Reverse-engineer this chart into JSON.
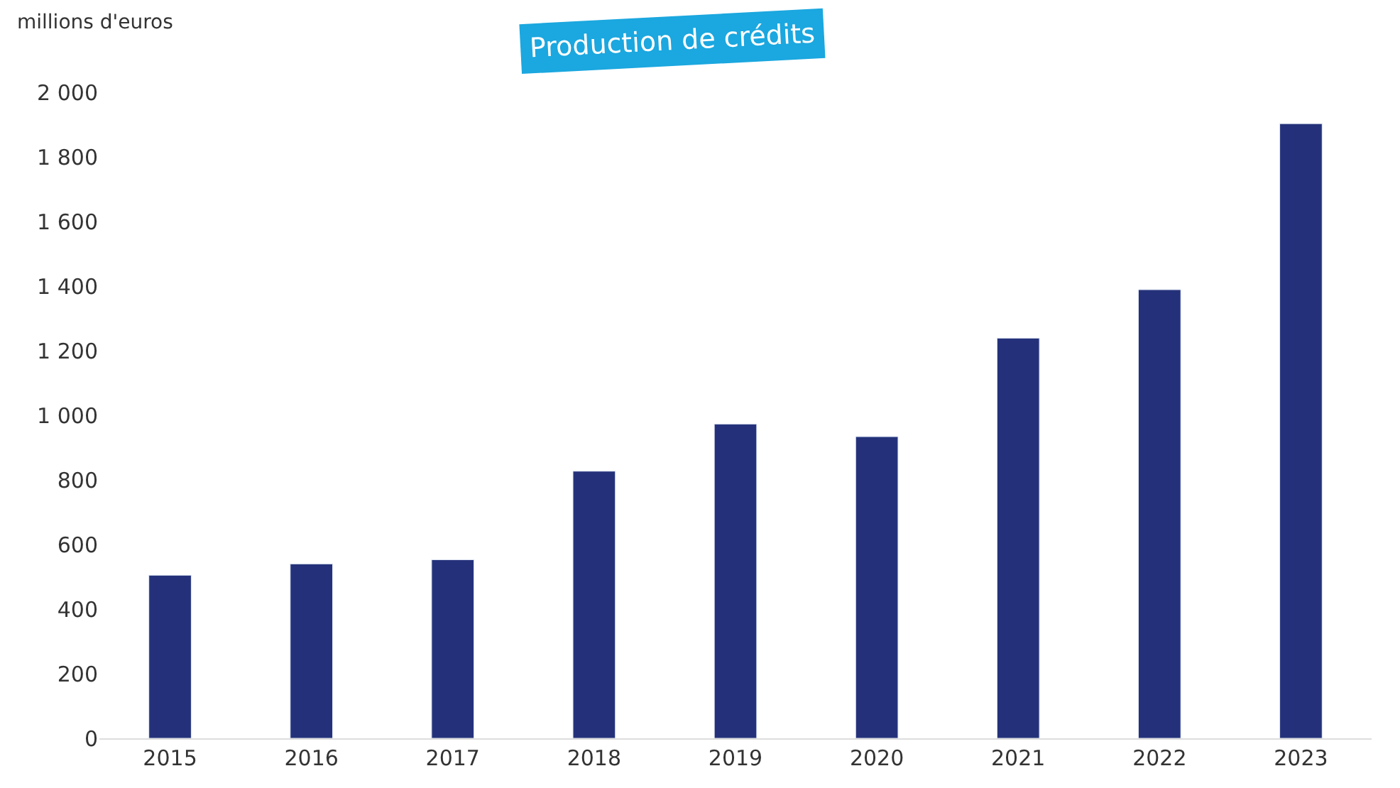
{
  "chart_data": {
    "type": "bar",
    "title": "Production de crédits",
    "ylabel": "millions d'euros",
    "categories": [
      "2015",
      "2016",
      "2017",
      "2018",
      "2019",
      "2020",
      "2021",
      "2022",
      "2023"
    ],
    "values": [
      505,
      540,
      553,
      827,
      973,
      934,
      1239,
      1389,
      1903
    ],
    "color": "#24317a",
    "ylim": [
      0,
      2000
    ],
    "yticks": [
      0,
      200,
      400,
      600,
      800,
      {
        "value": 1000,
        "label": "1 000"
      },
      {
        "value": 1200,
        "label": "1 200"
      },
      {
        "value": 1400,
        "label": "1 400"
      },
      {
        "value": 1600,
        "label": "1 600"
      },
      {
        "value": 1800,
        "label": "1 800"
      },
      {
        "value": 2000,
        "label": "2 000"
      }
    ],
    "legend": false
  }
}
